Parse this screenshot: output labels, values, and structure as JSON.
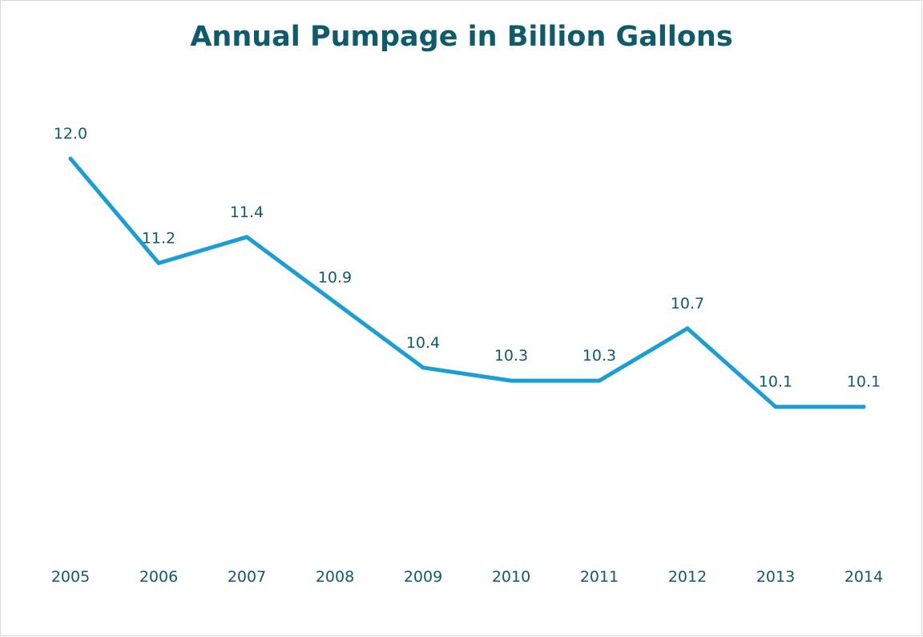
{
  "chart_data": {
    "type": "line",
    "title": "Annual Pumpage in Billion Gallons",
    "xlabel": "",
    "ylabel": "",
    "categories": [
      "2005",
      "2006",
      "2007",
      "2008",
      "2009",
      "2010",
      "2011",
      "2012",
      "2013",
      "2014"
    ],
    "series": [
      {
        "values": [
          12.0,
          11.2,
          11.4,
          10.9,
          10.4,
          10.3,
          10.3,
          10.7,
          10.1,
          10.1
        ],
        "labels": [
          "12.0",
          "11.2",
          "11.4",
          "10.9",
          "10.4",
          "10.3",
          "10.3",
          "10.7",
          "10.1",
          "10.1"
        ],
        "color": "#1a9ed6"
      }
    ],
    "ylim": [
      9.0,
      12.0
    ],
    "grid": false,
    "legend": "none",
    "text_color": "#0f5a6b"
  }
}
